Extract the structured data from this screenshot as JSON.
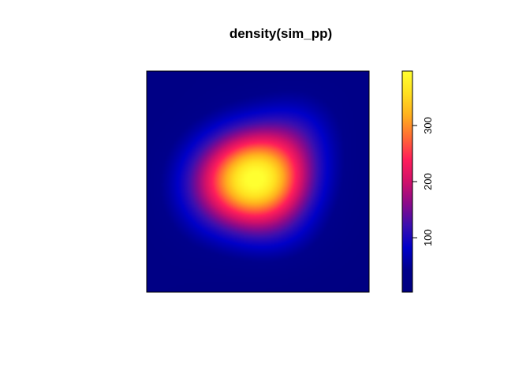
{
  "chart_data": {
    "type": "heatmap",
    "title": "density(sim_pp)",
    "xlabel": "",
    "ylabel": "",
    "axes_shown": false,
    "colorbar": {
      "position": "right",
      "range": [
        3,
        397
      ],
      "ticks": [
        100,
        200,
        300
      ],
      "tick_labels": [
        "100",
        "200",
        "300"
      ],
      "label_orientation": "vertical",
      "colors": [
        "#000080",
        "#00008b",
        "#0000c8",
        "#3a0fb0",
        "#8a0a8a",
        "#d0106a",
        "#ff1e5a",
        "#ff6a34",
        "#ffb01e",
        "#ffe020",
        "#ffff30"
      ]
    },
    "density_field": {
      "description_units": "unit square window, value = intensity",
      "peak": {
        "x": 0.49,
        "y": 0.51,
        "value": 397
      },
      "minimum_value": 3,
      "background_value": 20,
      "corner_values": {
        "bottom-left": 8,
        "top-right": 30,
        "top-left": 10,
        "bottom-right": 3
      }
    }
  }
}
